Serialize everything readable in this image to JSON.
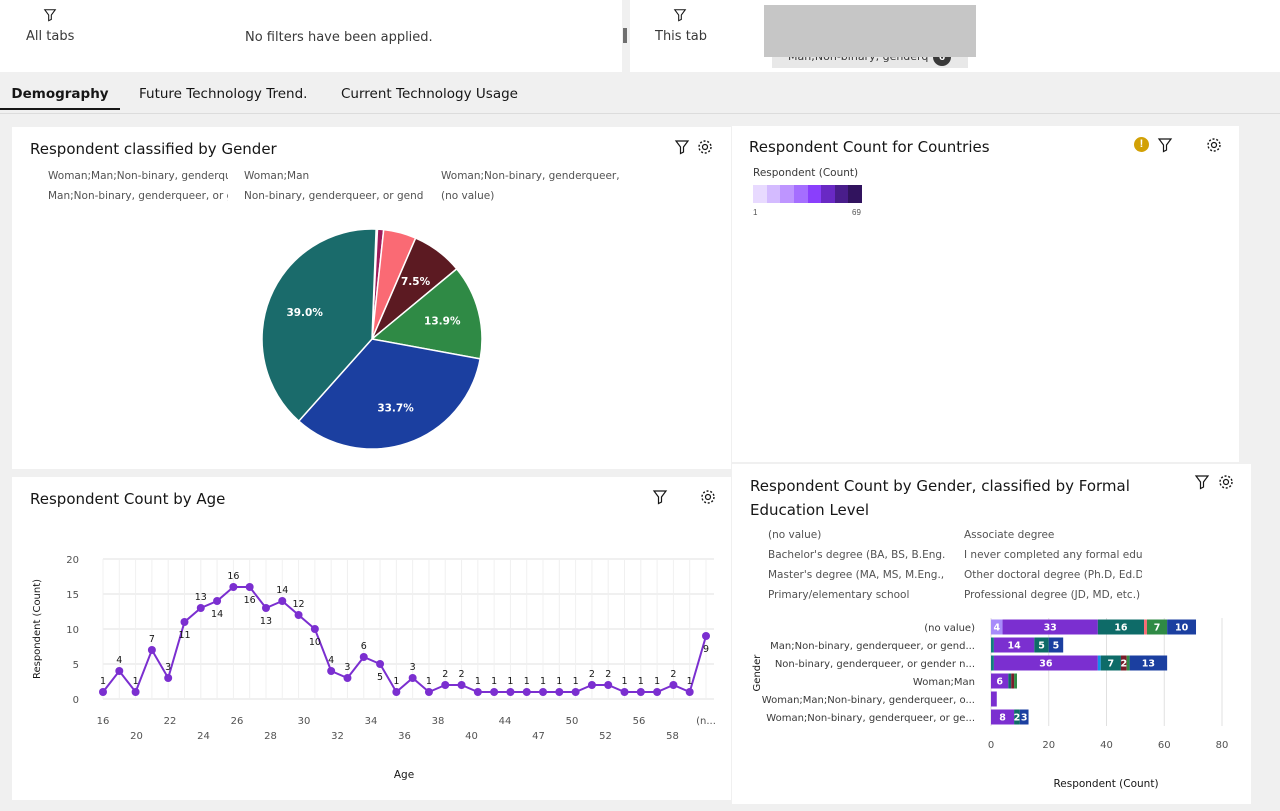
{
  "filters": {
    "all_tabs_label": "All tabs",
    "no_filters": "No filters have been applied.",
    "this_tab_label": "This tab",
    "chip_text": "Man;Non-binary, genderq",
    "chip_count": "6"
  },
  "tabs": [
    {
      "label": "Demography",
      "active": true
    },
    {
      "label": "Future Technology Trend."
    },
    {
      "label": "Current Technology Usage"
    }
  ],
  "gender_panel": {
    "title": "Respondent classified by Gender",
    "legend": [
      "Woman;Man;Non-binary, genderque",
      "Woman;Man",
      "Woman;Non-binary, genderqueer, or",
      "Man;Non-binary, genderqueer, or ge",
      "Non-binary, genderqueer, or gender",
      "(no value)"
    ]
  },
  "countries_panel": {
    "title": "Respondent Count for Countries",
    "legend_title": "Respondent (Count)",
    "min": "1",
    "max": "69"
  },
  "age_panel": {
    "title": "Respondent Count by Age",
    "xlabel": "Age",
    "ylabel": "Respondent (Count)"
  },
  "edu_panel": {
    "title": "Respondent Count by Gender, classified by Formal Education Level",
    "legend": [
      "(no value)",
      "Associate degree",
      "Bachelor's degree (BA, BS, B.Eng., e",
      "I never completed any formal educa",
      "Master's degree (MA, MS, M.Eng., MI",
      "Other doctoral degree (Ph.D, Ed.D., e",
      "Primary/elementary school",
      "Professional degree (JD, MD, etc.)"
    ],
    "ylabel": "Gender",
    "xlabel": "Respondent (Count)"
  },
  "chart_data": [
    {
      "type": "pie",
      "title": "Respondent classified by Gender",
      "slices": [
        {
          "label": "Woman;Man;Non-binary, genderque",
          "percent": 0.9,
          "color": "#9e1b5a"
        },
        {
          "label": "Woman;Man",
          "percent": 4.8,
          "color": "#fa6a74"
        },
        {
          "label": "Woman;Non-binary, genderqueer, or",
          "percent": 7.5,
          "color": "#5c1a22"
        },
        {
          "label": "Man;Non-binary, genderqueer, or ge",
          "percent": 13.9,
          "color": "#2f8a45"
        },
        {
          "label": "Non-binary, genderqueer, or gender",
          "percent": 33.7,
          "color": "#1b3fa0"
        },
        {
          "label": "(no value)",
          "percent": 39.0,
          "color": "#1a6b6b"
        }
      ],
      "labeled": [
        "7.5%",
        "13.9%",
        "33.7%",
        "39.0%"
      ]
    },
    {
      "type": "line",
      "title": "Respondent Count by Age",
      "xlabel": "Age",
      "ylabel": "Respondent (Count)",
      "ylim": [
        0,
        20
      ],
      "yticks": [
        0,
        5,
        10,
        15,
        20
      ],
      "xticks_top": [
        "16",
        "22",
        "26",
        "30",
        "34",
        "38",
        "44",
        "50",
        "56",
        "(n..."
      ],
      "xticks_bottom": [
        "20",
        "24",
        "28",
        "32",
        "36",
        "40",
        "47",
        "52",
        "58"
      ],
      "color": "#7b2fd0",
      "values": [
        1,
        4,
        1,
        7,
        3,
        11,
        13,
        14,
        16,
        16,
        13,
        14,
        12,
        10,
        4,
        3,
        6,
        5,
        1,
        3,
        1,
        2,
        2,
        1,
        1,
        1,
        1,
        1,
        1,
        1,
        2,
        2,
        1,
        1,
        1,
        2,
        1,
        9
      ]
    },
    {
      "type": "bar",
      "title": "Respondent Count by Gender, classified by Formal Education Level",
      "orientation": "horizontal",
      "stacked": true,
      "xlabel": "Respondent (Count)",
      "ylabel": "Gender",
      "xlim": [
        0,
        80
      ],
      "xticks": [
        0,
        20,
        40,
        60,
        80
      ],
      "categories": [
        "(no value)",
        "Man;Non-binary, genderqueer, or gend...",
        "Non-binary, genderqueer, or gender n...",
        "Woman;Man",
        "Woman;Man;Non-binary, genderqueer, o...",
        "Woman;Non-binary, genderqueer, or ge..."
      ],
      "series": [
        {
          "name": "(no value)",
          "color": "#a78bfa",
          "values": [
            4,
            0,
            0,
            0,
            0,
            0
          ]
        },
        {
          "name": "I never completed any formal educa",
          "color": "#10807c",
          "values": [
            0,
            1,
            1,
            0,
            0,
            0
          ]
        },
        {
          "name": "Bachelor's degree (BA, BS, B.Eng., e",
          "color": "#7b2fd0",
          "values": [
            33,
            14,
            36,
            6,
            2,
            8
          ]
        },
        {
          "name": "Associate degree",
          "color": "#1192e8",
          "values": [
            0,
            0,
            1,
            0,
            0,
            0
          ]
        },
        {
          "name": "Master's degree (MA, MS, M.Eng., MI",
          "color": "#0e6b68",
          "values": [
            16,
            5,
            7,
            1,
            0,
            2
          ]
        },
        {
          "name": "Primary/elementary school",
          "color": "#fa6a74",
          "values": [
            1,
            0,
            0,
            0,
            0,
            0
          ]
        },
        {
          "name": "Other doctoral degree (Ph.D, Ed.D., e",
          "color": "#7a1c2a",
          "values": [
            0,
            0,
            2,
            1,
            0,
            0
          ]
        },
        {
          "name": "Professional degree (JD, MD, etc.)",
          "color": "#2f8a45",
          "values": [
            7,
            0,
            1,
            1,
            0,
            0
          ]
        },
        {
          "name": "Associate degree",
          "color": "#1b3fa0",
          "values": [
            10,
            5,
            13,
            0,
            0,
            3
          ]
        }
      ],
      "data_labels": [
        [
          "4",
          "33",
          "16",
          "7",
          "10"
        ],
        [
          "14",
          "5",
          "5"
        ],
        [
          "36",
          "7",
          "2",
          "13"
        ],
        [
          "6"
        ],
        [],
        [
          "8",
          "2",
          "3"
        ]
      ]
    }
  ]
}
